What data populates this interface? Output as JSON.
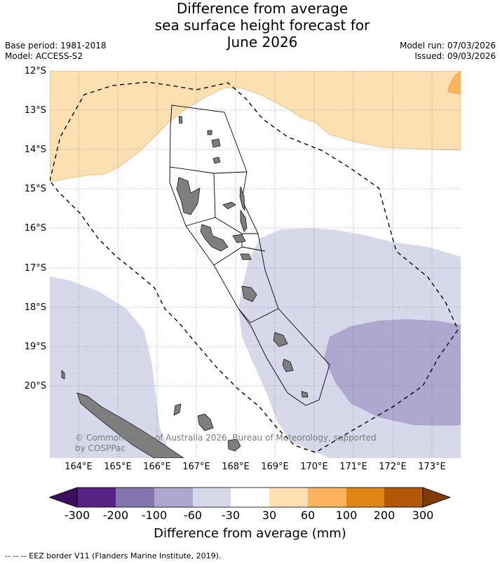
{
  "title": {
    "line1": "Difference from average",
    "line2": "sea surface height forecast for",
    "line3": "June 2026"
  },
  "meta_left": {
    "base_period": "Base period: 1981-2018",
    "model": "Model: ACCESS-S2"
  },
  "meta_right": {
    "model_run": "Model run: 07/03/2026",
    "issued": "Issued: 09/03/2026"
  },
  "map": {
    "lat_ticks": [
      "12°S",
      "13°S",
      "14°S",
      "15°S",
      "16°S",
      "17°S",
      "18°S",
      "19°S",
      "20°S"
    ],
    "lon_ticks": [
      "164°E",
      "165°E",
      "166°E",
      "167°E",
      "168°E",
      "169°E",
      "170°E",
      "171°E",
      "172°E",
      "173°E"
    ],
    "extent": {
      "lon_min": 163.3,
      "lon_max": 173.7,
      "lat_top": -12.0,
      "lat_bottom": -21.8
    },
    "copyright": "© Commonwealth of Australia 2026, Bureau of Meteorology, supported by COSPPac"
  },
  "colorbar": {
    "labels": [
      "-300",
      "-200",
      "-100",
      "-60",
      "-30",
      "30",
      "60",
      "100",
      "200",
      "300"
    ],
    "colors": [
      "#3b0f5e",
      "#5a2184",
      "#8375ad",
      "#aea7cf",
      "#d8d8ea",
      "#ffffff",
      "#fde0b2",
      "#fbb45d",
      "#e28517",
      "#b35806",
      "#7f3b08"
    ],
    "title": "Difference from average (mm)"
  },
  "footnote": "--  --  -- EEZ border V11 (Flanders Marine Institute, 2019)."
}
